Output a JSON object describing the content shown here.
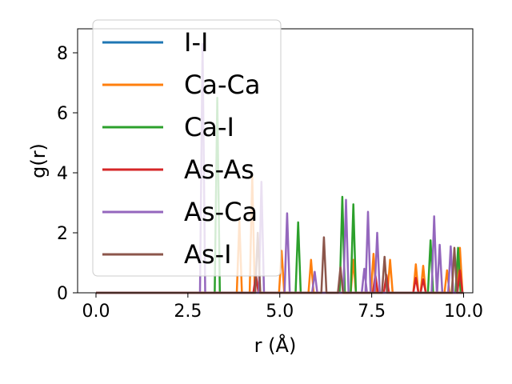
{
  "chart_data": {
    "type": "line",
    "xlabel": "r (Å)",
    "ylabel": "g(r)",
    "xlim": [
      -0.5,
      10.25
    ],
    "ylim": [
      0,
      8.8
    ],
    "x_ticks": [
      0.0,
      2.5,
      5.0,
      7.5,
      10.0
    ],
    "x_tick_labels": [
      "0.0",
      "2.5",
      "5.0",
      "7.5",
      "10.0"
    ],
    "y_ticks": [
      0,
      2,
      4,
      6,
      8
    ],
    "y_tick_labels": [
      "0",
      "2",
      "4",
      "6",
      "8"
    ],
    "grid": false,
    "legend_position": "upper-left",
    "peak_halfwidth": 0.07,
    "series": [
      {
        "name": "I-I",
        "color": "#1f77b4",
        "peaks": []
      },
      {
        "name": "Ca-Ca",
        "color": "#ff7f0e",
        "peaks": [
          [
            3.9,
            2.4
          ],
          [
            4.25,
            3.9
          ],
          [
            5.05,
            1.4
          ],
          [
            5.85,
            1.1
          ],
          [
            7.0,
            1.1
          ],
          [
            7.55,
            1.3
          ],
          [
            8.0,
            1.1
          ],
          [
            8.7,
            0.95
          ],
          [
            8.9,
            0.9
          ],
          [
            9.55,
            0.75
          ],
          [
            9.9,
            1.5
          ]
        ]
      },
      {
        "name": "Ca-I",
        "color": "#2ca02c",
        "peaks": [
          [
            3.3,
            6.5
          ],
          [
            5.5,
            2.35
          ],
          [
            6.7,
            3.2
          ],
          [
            7.0,
            2.95
          ],
          [
            9.1,
            1.75
          ],
          [
            9.85,
            1.5
          ]
        ]
      },
      {
        "name": "As-As",
        "color": "#d62728",
        "peaks": [
          [
            4.35,
            0.6
          ],
          [
            7.6,
            0.6
          ],
          [
            7.9,
            0.6
          ],
          [
            8.7,
            0.5
          ],
          [
            8.9,
            0.45
          ],
          [
            9.9,
            0.75
          ]
        ]
      },
      {
        "name": "As-Ca",
        "color": "#9467bd",
        "peaks": [
          [
            2.9,
            8.3
          ],
          [
            4.5,
            3.7
          ],
          [
            5.2,
            2.65
          ],
          [
            5.95,
            0.7
          ],
          [
            6.8,
            3.1
          ],
          [
            7.3,
            0.8
          ],
          [
            7.4,
            2.7
          ],
          [
            7.65,
            2.0
          ],
          [
            9.2,
            2.55
          ],
          [
            9.35,
            1.6
          ],
          [
            9.65,
            1.55
          ]
        ]
      },
      {
        "name": "As-I",
        "color": "#8c564b",
        "peaks": [
          [
            4.4,
            2.0
          ],
          [
            6.2,
            1.85
          ],
          [
            6.65,
            0.85
          ],
          [
            7.85,
            1.2
          ],
          [
            9.75,
            1.5
          ]
        ]
      }
    ]
  }
}
